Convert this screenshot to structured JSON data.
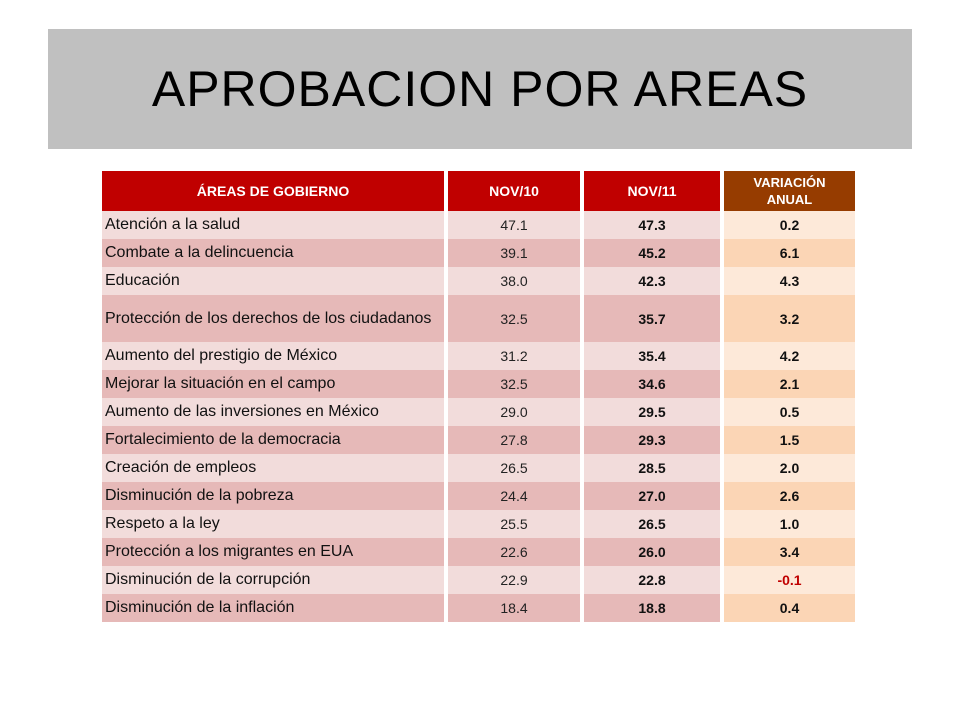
{
  "title": "APROBACION POR AREAS",
  "table": {
    "headers": [
      "ÁREAS DE GOBIERNO",
      "NOV/10",
      "NOV/11",
      "VARIACIÓN\nANUAL"
    ],
    "rows": [
      {
        "area": "Atención a la salud",
        "nov10": "47.1",
        "nov11": "47.3",
        "var": "0.2"
      },
      {
        "area": "Combate a la delincuencia",
        "nov10": "39.1",
        "nov11": "45.2",
        "var": "6.1"
      },
      {
        "area": "Educación",
        "nov10": "38.0",
        "nov11": "42.3",
        "var": "4.3"
      },
      {
        "area": "Protección de los derechos de los ciudadanos",
        "nov10": "32.5",
        "nov11": "35.7",
        "var": "3.2"
      },
      {
        "area": "Aumento del prestigio de México",
        "nov10": "31.2",
        "nov11": "35.4",
        "var": "4.2"
      },
      {
        "area": "Mejorar la situación en el campo",
        "nov10": "32.5",
        "nov11": "34.6",
        "var": "2.1"
      },
      {
        "area": "Aumento de las inversiones en México",
        "nov10": "29.0",
        "nov11": "29.5",
        "var": "0.5"
      },
      {
        "area": "Fortalecimiento de la democracia",
        "nov10": "27.8",
        "nov11": "29.3",
        "var": "1.5"
      },
      {
        "area": "Creación de empleos",
        "nov10": "26.5",
        "nov11": "28.5",
        "var": "2.0"
      },
      {
        "area": "Disminución de la pobreza",
        "nov10": "24.4",
        "nov11": "27.0",
        "var": "2.6"
      },
      {
        "area": "Respeto a la ley",
        "nov10": "25.5",
        "nov11": "26.5",
        "var": "1.0"
      },
      {
        "area": "Protección a los migrantes en EUA",
        "nov10": "22.6",
        "nov11": "26.0",
        "var": "3.4"
      },
      {
        "area": "Disminución de la corrupción",
        "nov10": "22.9",
        "nov11": "22.8",
        "var": "-0.1"
      },
      {
        "area": "Disminución de la inflación",
        "nov10": "18.4",
        "nov11": "18.8",
        "var": "0.4"
      }
    ]
  },
  "colors": {
    "header_red": "#c00000",
    "header_brown": "#963c00",
    "negative": "#c00000"
  }
}
